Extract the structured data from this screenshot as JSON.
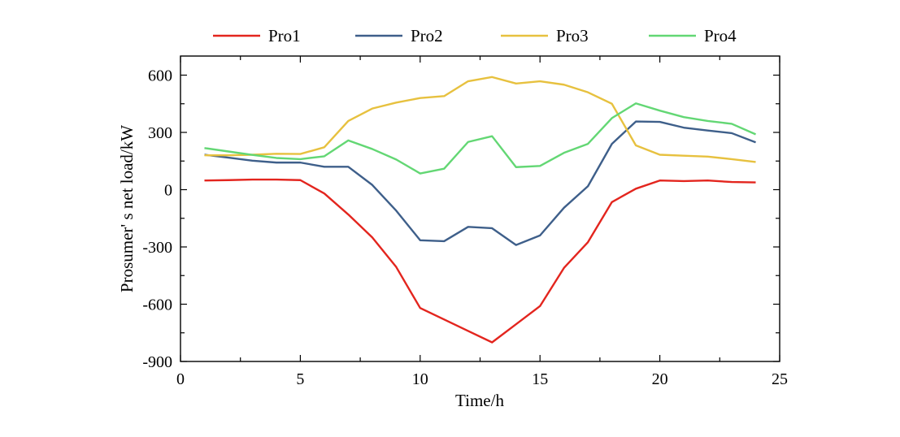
{
  "chart_data": {
    "type": "line",
    "title": "",
    "xlabel": "Time/h",
    "ylabel": "Prosumer' s net load/kW",
    "xlim": [
      0,
      25
    ],
    "ylim": [
      -900,
      700
    ],
    "xticks": [
      0,
      5,
      10,
      15,
      20,
      25
    ],
    "yticks": [
      -900,
      -600,
      -300,
      0,
      300,
      600
    ],
    "grid": false,
    "legend_position": "top",
    "x": [
      1,
      2,
      3,
      4,
      5,
      6,
      7,
      8,
      9,
      10,
      11,
      12,
      13,
      14,
      15,
      16,
      17,
      18,
      19,
      20,
      21,
      22,
      23,
      24
    ],
    "series": [
      {
        "name": "Pro1",
        "color": "#e3251e",
        "values": [
          48,
          50,
          53,
          53,
          50,
          -20,
          -130,
          -250,
          -405,
          -620,
          -680,
          -740,
          -800,
          -705,
          -610,
          -410,
          -275,
          -65,
          5,
          48,
          45,
          48,
          40,
          38
        ]
      },
      {
        "name": "Pro2",
        "color": "#3e5f8a",
        "values": [
          183,
          168,
          152,
          142,
          142,
          120,
          120,
          25,
          -110,
          -265,
          -270,
          -195,
          -202,
          -290,
          -240,
          -95,
          18,
          240,
          357,
          355,
          325,
          310,
          296,
          248
        ]
      },
      {
        "name": "Pro3",
        "color": "#e7c13f",
        "values": [
          180,
          180,
          183,
          188,
          187,
          222,
          360,
          425,
          456,
          480,
          490,
          568,
          590,
          556,
          568,
          550,
          510,
          450,
          232,
          183,
          178,
          173,
          160,
          145
        ]
      },
      {
        "name": "Pro4",
        "color": "#63d774",
        "values": [
          218,
          200,
          182,
          166,
          160,
          175,
          258,
          213,
          158,
          85,
          110,
          250,
          280,
          118,
          124,
          193,
          240,
          375,
          452,
          414,
          380,
          360,
          345,
          290
        ]
      }
    ]
  }
}
